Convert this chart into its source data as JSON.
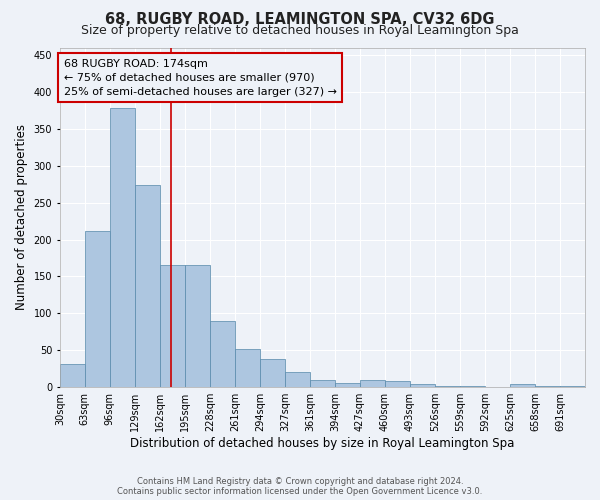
{
  "title": "68, RUGBY ROAD, LEAMINGTON SPA, CV32 6DG",
  "subtitle": "Size of property relative to detached houses in Royal Leamington Spa",
  "xlabel": "Distribution of detached houses by size in Royal Leamington Spa",
  "ylabel": "Number of detached properties",
  "footer_line1": "Contains HM Land Registry data © Crown copyright and database right 2024.",
  "footer_line2": "Contains public sector information licensed under the Open Government Licence v3.0.",
  "bin_labels": [
    "30sqm",
    "63sqm",
    "96sqm",
    "129sqm",
    "162sqm",
    "195sqm",
    "228sqm",
    "261sqm",
    "294sqm",
    "327sqm",
    "361sqm",
    "394sqm",
    "427sqm",
    "460sqm",
    "493sqm",
    "526sqm",
    "559sqm",
    "592sqm",
    "625sqm",
    "658sqm",
    "691sqm"
  ],
  "bar_values": [
    31,
    211,
    378,
    274,
    166,
    165,
    90,
    52,
    38,
    20,
    10,
    6,
    10,
    9,
    5,
    2,
    1,
    0,
    5,
    1,
    2
  ],
  "bar_color": "#adc6e0",
  "bar_edge_color": "#5588aa",
  "property_size_idx": 4.45,
  "red_line_color": "#cc0000",
  "annotation_box_line1": "68 RUGBY ROAD: 174sqm",
  "annotation_box_line2": "← 75% of detached houses are smaller (970)",
  "annotation_box_line3": "25% of semi-detached houses are larger (327) →",
  "annotation_box_color": "#cc0000",
  "ylim": [
    0,
    460
  ],
  "yticks": [
    0,
    50,
    100,
    150,
    200,
    250,
    300,
    350,
    400,
    450
  ],
  "background_color": "#eef2f8",
  "grid_color": "#ffffff",
  "title_fontsize": 10.5,
  "subtitle_fontsize": 9,
  "axis_label_fontsize": 8.5,
  "tick_fontsize": 7,
  "annotation_fontsize": 8,
  "footer_fontsize": 6
}
